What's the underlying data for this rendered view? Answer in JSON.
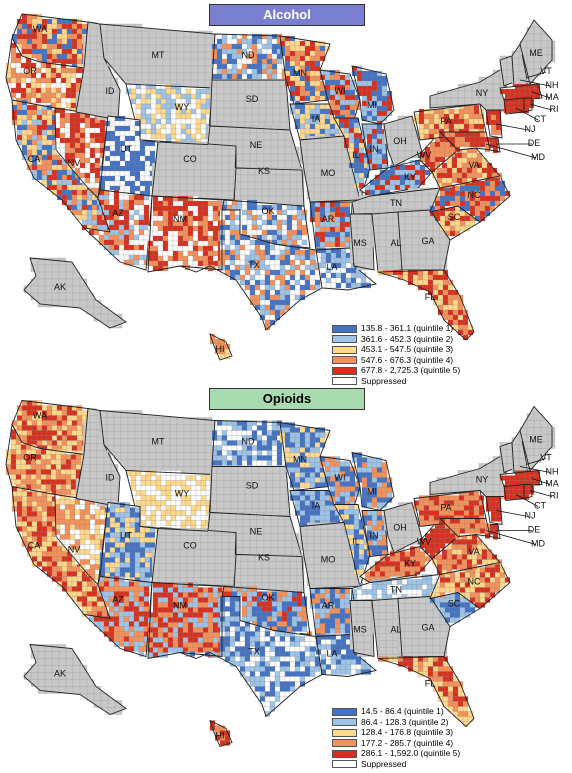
{
  "maps": [
    {
      "title": "Alcohol",
      "legend": [
        {
          "label": "135.8 - 361.1 (quintile 1)",
          "color": "#4472c4"
        },
        {
          "label": "361.6 - 452.3 (quintile 2)",
          "color": "#9dc3e6"
        },
        {
          "label": "453.1 - 547.5 (quintile 3)",
          "color": "#ffd98a"
        },
        {
          "label": "547.6 - 676.3 (quintile 4)",
          "color": "#f4915a"
        },
        {
          "label": "677.8 - 2,725.3 (quintile 5)",
          "color": "#d7301f"
        },
        {
          "label": "Suppressed",
          "color": "#ffffff"
        }
      ]
    },
    {
      "title": "Opioids",
      "legend": [
        {
          "label": "14.5 - 86.4 (quintile 1)",
          "color": "#4472c4"
        },
        {
          "label": "86.4 - 128.3 (quintile 2)",
          "color": "#9dc3e6"
        },
        {
          "label": "128.4 - 176.8 (quintile 3)",
          "color": "#ffd98a"
        },
        {
          "label": "177.2 - 285.7 (quintile 4)",
          "color": "#f4915a"
        },
        {
          "label": "286.1 - 1,592.0 (quintile 5)",
          "color": "#d7301f"
        },
        {
          "label": "Suppressed",
          "color": "#ffffff"
        }
      ]
    }
  ],
  "state_labels": [
    "WA",
    "OR",
    "CA",
    "NV",
    "ID",
    "MT",
    "WY",
    "UT",
    "AZ",
    "CO",
    "NM",
    "ND",
    "SD",
    "NE",
    "KS",
    "OK",
    "TX",
    "MN",
    "IA",
    "MO",
    "AR",
    "LA",
    "WI",
    "IL",
    "MI",
    "IN",
    "OH",
    "KY",
    "TN",
    "MS",
    "AL",
    "GA",
    "FL",
    "SC",
    "NC",
    "VA",
    "WV",
    "PA",
    "NY",
    "VT",
    "NH",
    "ME",
    "MA",
    "CT",
    "RI",
    "NJ",
    "DE",
    "MD",
    "AK",
    "HI"
  ],
  "colors": {
    "no_data_state": "#c8c8c8",
    "border": "#222222"
  }
}
